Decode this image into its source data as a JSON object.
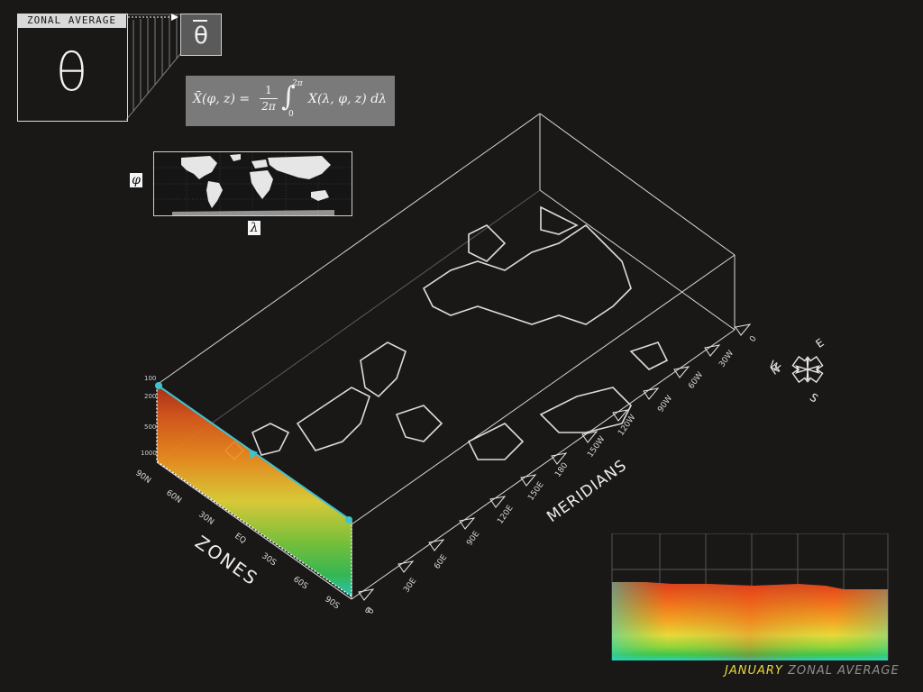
{
  "header": {
    "zonal_title": "ZONAL AVERAGE",
    "symbol": "θ",
    "symbol_mean": "θ"
  },
  "formula": {
    "lhs": "X̄(φ, z) =",
    "frac_num": "1",
    "frac_den": "2π",
    "integral": "∫",
    "upper": "2π",
    "lower": "0",
    "integrand": "X(λ, φ, z) dλ"
  },
  "mini_map": {
    "phi": "φ",
    "lambda": "λ"
  },
  "axes": {
    "zones_title": "ZONES",
    "meridians_title": "MERIDIANS",
    "zone_ticks": [
      "90N",
      "60N",
      "30N",
      "EQ",
      "30S",
      "60S",
      "90S",
      "0"
    ],
    "meridian_ticks": [
      "0",
      "30W",
      "60W",
      "90W",
      "120W",
      "150W",
      "180",
      "150E",
      "120E",
      "90E",
      "60E",
      "30E",
      "0"
    ],
    "pressure_ticks": [
      "100",
      "200",
      "500",
      "1000"
    ]
  },
  "compass": {
    "n": "N",
    "e": "E",
    "s": "S",
    "w": "W"
  },
  "caption": {
    "month": "JANUARY",
    "rest": "ZONAL AVERAGE"
  },
  "colors": {
    "background": "#1a1817",
    "line": "#e0e0e0",
    "cursor": "#3fc3d0",
    "month": "#e8d83a",
    "gradient": [
      "#e03a1c",
      "#f26b1a",
      "#f5a623",
      "#e8d83a",
      "#9ad53b",
      "#3fc64a",
      "#2ad3c4"
    ]
  }
}
